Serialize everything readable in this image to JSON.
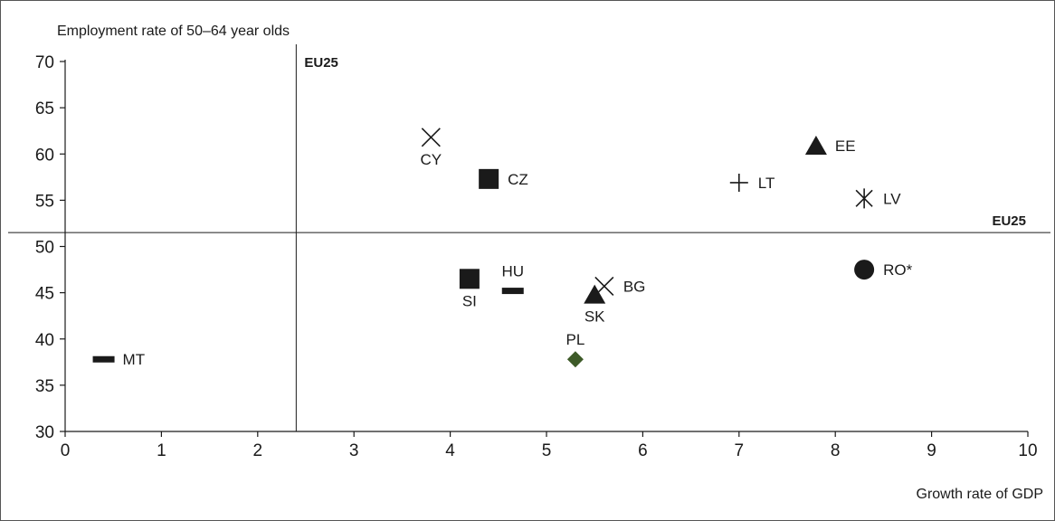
{
  "chart_data": {
    "type": "scatter",
    "ylabel": "Employment rate of 50–64 year olds",
    "xlabel": "Growth rate of GDP",
    "xlim": [
      0,
      10
    ],
    "ylim": [
      30,
      70
    ],
    "x_ticks": [
      "0",
      "1",
      "2",
      "3",
      "4",
      "5",
      "6",
      "7",
      "8",
      "9",
      "10"
    ],
    "y_ticks": [
      "30",
      "35",
      "40",
      "45",
      "50",
      "55",
      "60",
      "65",
      "70"
    ],
    "grid": false,
    "reference_lines": [
      {
        "axis": "x",
        "value": 2.4,
        "label": "EU25"
      },
      {
        "axis": "y",
        "value": 51.5,
        "label": "EU25"
      }
    ],
    "points": [
      {
        "label": "CY",
        "x": 3.8,
        "y": 61.8,
        "marker": "cross",
        "color": "#1a1a1a",
        "label_pos": "below"
      },
      {
        "label": "CZ",
        "x": 4.4,
        "y": 57.3,
        "marker": "square",
        "color": "#1a1a1a",
        "label_pos": "right"
      },
      {
        "label": "EE",
        "x": 7.8,
        "y": 60.9,
        "marker": "triangle",
        "color": "#1a1a1a",
        "label_pos": "right"
      },
      {
        "label": "LT",
        "x": 7.0,
        "y": 56.9,
        "marker": "plus",
        "color": "#1a1a1a",
        "label_pos": "right"
      },
      {
        "label": "LV",
        "x": 8.3,
        "y": 55.2,
        "marker": "asterisk",
        "color": "#1a1a1a",
        "label_pos": "right"
      },
      {
        "label": "RO*",
        "x": 8.3,
        "y": 47.5,
        "marker": "circle",
        "color": "#1a1a1a",
        "label_pos": "right"
      },
      {
        "label": "SI",
        "x": 4.2,
        "y": 46.5,
        "marker": "square",
        "color": "#1a1a1a",
        "label_pos": "below"
      },
      {
        "label": "HU",
        "x": 4.65,
        "y": 45.2,
        "marker": "dash",
        "color": "#1a1a1a",
        "label_pos": "above"
      },
      {
        "label": "BG",
        "x": 5.6,
        "y": 45.7,
        "marker": "cross",
        "color": "#1a1a1a",
        "label_pos": "right"
      },
      {
        "label": "SK",
        "x": 5.5,
        "y": 44.8,
        "marker": "triangle",
        "color": "#1a1a1a",
        "label_pos": "below"
      },
      {
        "label": "PL",
        "x": 5.3,
        "y": 37.8,
        "marker": "diamond",
        "color": "#3d5a28",
        "label_pos": "above"
      },
      {
        "label": "MT",
        "x": 0.4,
        "y": 37.8,
        "marker": "dash",
        "color": "#1a1a1a",
        "label_pos": "right"
      }
    ]
  }
}
